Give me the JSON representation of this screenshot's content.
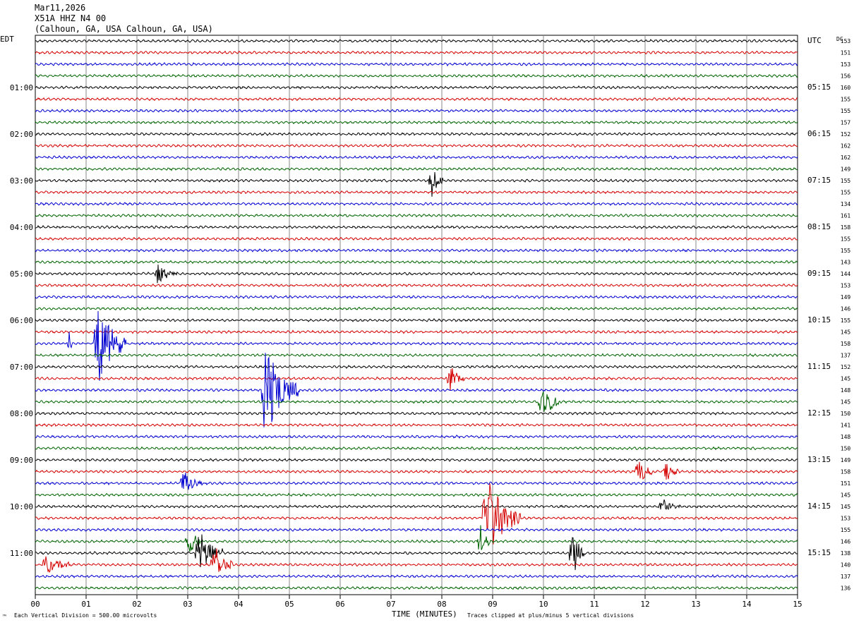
{
  "header": {
    "date": "Mar11,2026",
    "station": "X51A HHZ N4 00",
    "location": "(Calhoun, GA, USA Calhoun, GA, USA)"
  },
  "left_axis": {
    "label": "EDT"
  },
  "right_axis": {
    "label": "UTC",
    "dc_label": "DC"
  },
  "footer": {
    "scale_note": "Each Vertical Division = 500.00 microvolts",
    "xlabel": "TIME (MINUTES)",
    "clip_note": "Traces clipped at plus/minus 5 vertical divisions",
    "corner_mark": "™"
  },
  "chart_data": {
    "type": "line",
    "title": "X51A HHZ N4 00",
    "xlabel": "TIME (MINUTES)",
    "xlim": [
      0,
      15
    ],
    "x_ticks": [
      "00",
      "01",
      "02",
      "03",
      "04",
      "05",
      "06",
      "07",
      "08",
      "09",
      "10",
      "11",
      "12",
      "13",
      "14",
      "15"
    ],
    "grid": "vertical lines every minute",
    "trace_minutes": 15,
    "trace_colors": [
      "#000000",
      "#d40000",
      "#0000d0",
      "#006400"
    ],
    "edt_ticks": [
      {
        "row": 4,
        "label": "01:00"
      },
      {
        "row": 8,
        "label": "02:00"
      },
      {
        "row": 12,
        "label": "03:00"
      },
      {
        "row": 16,
        "label": "04:00"
      },
      {
        "row": 20,
        "label": "05:00"
      },
      {
        "row": 24,
        "label": "06:00"
      },
      {
        "row": 28,
        "label": "07:00"
      },
      {
        "row": 32,
        "label": "08:00"
      },
      {
        "row": 36,
        "label": "09:00"
      },
      {
        "row": 40,
        "label": "10:00"
      },
      {
        "row": 44,
        "label": "11:00"
      }
    ],
    "utc_ticks": [
      {
        "row": 0,
        "label": "UTC"
      },
      {
        "row": 4,
        "label": "05:15"
      },
      {
        "row": 8,
        "label": "06:15"
      },
      {
        "row": 12,
        "label": "07:15"
      },
      {
        "row": 16,
        "label": "08:15"
      },
      {
        "row": 20,
        "label": "09:15"
      },
      {
        "row": 24,
        "label": "10:15"
      },
      {
        "row": 28,
        "label": "11:15"
      },
      {
        "row": 32,
        "label": "12:15"
      },
      {
        "row": 36,
        "label": "13:15"
      },
      {
        "row": 40,
        "label": "14:15"
      },
      {
        "row": 44,
        "label": "15:15"
      }
    ],
    "dc_offsets": [
      "153",
      "151",
      "153",
      "156",
      "160",
      "155",
      "155",
      "157",
      "152",
      "162",
      "162",
      "149",
      "155",
      "155",
      "134",
      "161",
      "158",
      "155",
      "155",
      "143",
      "144",
      "153",
      "149",
      "146",
      "155",
      "145",
      "158",
      "137",
      "152",
      "145",
      "148",
      "145",
      "150",
      "141",
      "148",
      "150",
      "149",
      "158",
      "151",
      "145",
      "145",
      "153",
      "155",
      "146",
      "138",
      "140",
      "137",
      "136"
    ],
    "events": [
      {
        "row": 12,
        "minute": 7.8,
        "amplitude": 4,
        "duration": 0.25
      },
      {
        "row": 20,
        "minute": 2.4,
        "amplitude": 2.5,
        "duration": 0.4
      },
      {
        "row": 26,
        "minute": 1.2,
        "amplitude": 12,
        "duration": 0.6
      },
      {
        "row": 26,
        "minute": 0.65,
        "amplitude": 5,
        "duration": 0.08
      },
      {
        "row": 29,
        "minute": 8.15,
        "amplitude": 4,
        "duration": 0.3
      },
      {
        "row": 30,
        "minute": 4.5,
        "amplitude": 13,
        "duration": 0.7
      },
      {
        "row": 31,
        "minute": 9.95,
        "amplitude": 7,
        "duration": 0.35
      },
      {
        "row": 37,
        "minute": 11.85,
        "amplitude": 5,
        "duration": 0.3
      },
      {
        "row": 37,
        "minute": 12.4,
        "amplitude": 4,
        "duration": 0.25
      },
      {
        "row": 38,
        "minute": 2.9,
        "amplitude": 3,
        "duration": 0.5
      },
      {
        "row": 40,
        "minute": 12.3,
        "amplitude": 3,
        "duration": 0.4
      },
      {
        "row": 41,
        "minute": 8.85,
        "amplitude": 12,
        "duration": 0.7
      },
      {
        "row": 43,
        "minute": 3.0,
        "amplitude": 4,
        "duration": 0.3
      },
      {
        "row": 43,
        "minute": 8.75,
        "amplitude": 5,
        "duration": 0.2
      },
      {
        "row": 44,
        "minute": 3.2,
        "amplitude": 8,
        "duration": 0.5
      },
      {
        "row": 44,
        "minute": 10.55,
        "amplitude": 8,
        "duration": 0.25
      },
      {
        "row": 45,
        "minute": 3.5,
        "amplitude": 6,
        "duration": 0.4
      },
      {
        "row": 45,
        "minute": 0.2,
        "amplitude": 3,
        "duration": 0.5
      }
    ]
  }
}
